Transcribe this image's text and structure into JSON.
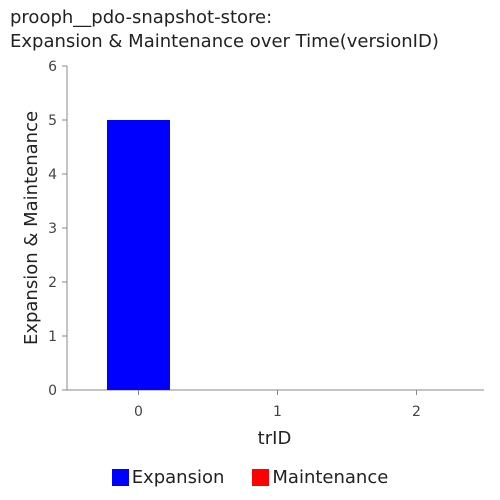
{
  "chart_data": {
    "type": "bar",
    "title_line1": "prooph__pdo-snapshot-store:",
    "title_line2": "Expansion & Maintenance over Time(versionID)",
    "xlabel": "trID",
    "ylabel": "Expansion & Maintenance",
    "categories": [
      "0",
      "1",
      "2"
    ],
    "ylim": [
      0,
      6
    ],
    "yticks": [
      "0",
      "1",
      "2",
      "3",
      "4",
      "5",
      "6"
    ],
    "series": [
      {
        "name": "Expansion",
        "color": "#0000ff",
        "values": [
          5,
          0,
          0
        ]
      },
      {
        "name": "Maintenance",
        "color": "#ff0000",
        "values": [
          0,
          0,
          0
        ]
      }
    ],
    "grid": false,
    "legend_position": "bottom"
  }
}
